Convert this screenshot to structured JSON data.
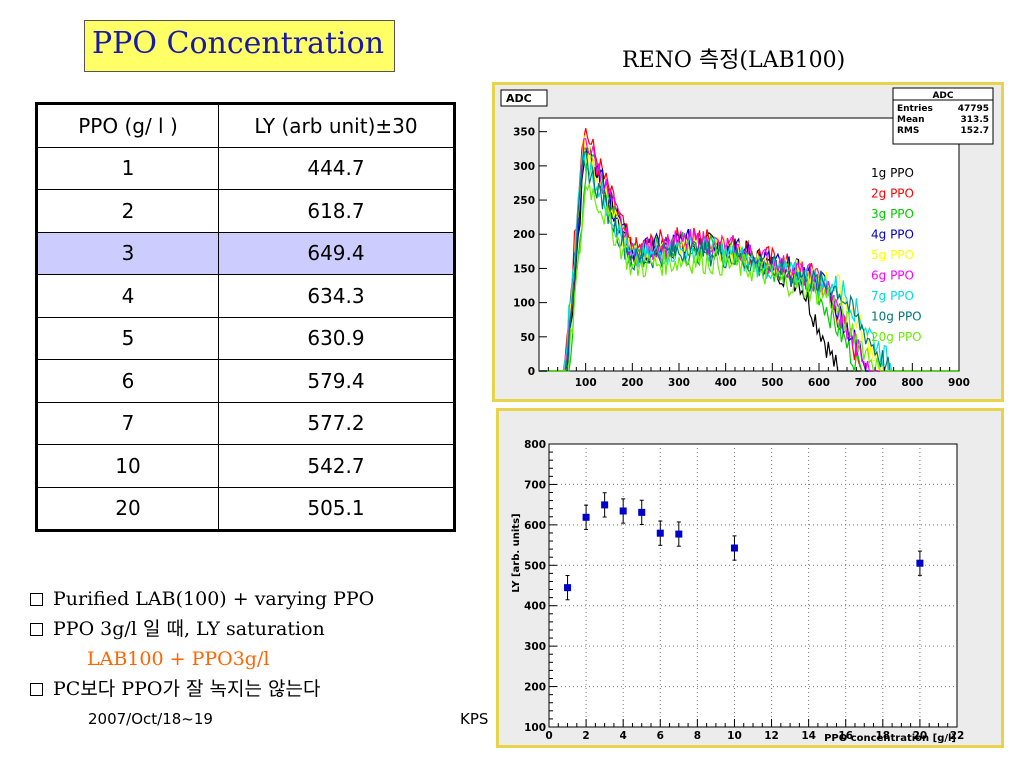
{
  "slide": {
    "title": "PPO Concentration",
    "right_title": "RENO 측정(LAB100)",
    "footer_date": "2007/Oct/18~19",
    "footer_org": "KPS"
  },
  "table": {
    "headers": [
      "PPO (g/ l )",
      "LY (arb unit)±30"
    ],
    "rows": [
      [
        "1",
        "444.7"
      ],
      [
        "2",
        "618.7"
      ],
      [
        "3",
        "649.4"
      ],
      [
        "4",
        "634.3"
      ],
      [
        "5",
        "630.9"
      ],
      [
        "6",
        "579.4"
      ],
      [
        "7",
        "577.2"
      ],
      [
        "10",
        "542.7"
      ],
      [
        "20",
        "505.1"
      ]
    ],
    "highlight_color": "#ccccff"
  },
  "bullets": [
    "Purified LAB(100) +  varying PPO",
    "PPO 3g/l 일 때, LY saturation",
    "LAB100 +  PPO3g/l",
    "PC보다 PPO가 잘 녹지는 않는다"
  ],
  "chart_data": [
    {
      "type": "line",
      "title": "ADC",
      "stats": {
        "title": "ADC",
        "Entries": "47795",
        "Mean": "313.5",
        "RMS": "152.7"
      },
      "xlim": [
        0,
        900
      ],
      "ylim": [
        0,
        370
      ],
      "xticks": [
        100,
        200,
        300,
        400,
        500,
        600,
        700,
        800,
        900
      ],
      "yticks": [
        0,
        50,
        100,
        150,
        200,
        250,
        300,
        350
      ],
      "series": [
        {
          "name": "1g   PPO",
          "color": "#000000"
        },
        {
          "name": "2g   PPO",
          "color": "#ff0000"
        },
        {
          "name": "3g   PPO",
          "color": "#00cc00"
        },
        {
          "name": "4g   PPO",
          "color": "#0000cc"
        },
        {
          "name": "5g   PPO",
          "color": "#ffff00"
        },
        {
          "name": "6g   PPO",
          "color": "#ff00ff"
        },
        {
          "name": "7g   PPO",
          "color": "#00dddd"
        },
        {
          "name": "10g PPO",
          "color": "#007777"
        },
        {
          "name": "20g PPO",
          "color": "#66ee00"
        }
      ]
    },
    {
      "type": "scatter",
      "xlabel": "PPO concentration [g/l]",
      "ylabel": "LY [arb. units]",
      "xlim": [
        0,
        22
      ],
      "ylim": [
        100,
        800
      ],
      "xticks": [
        0,
        2,
        4,
        6,
        8,
        10,
        12,
        14,
        16,
        18,
        20,
        22
      ],
      "yticks": [
        100,
        200,
        300,
        400,
        500,
        600,
        700,
        800
      ],
      "x": [
        1,
        2,
        3,
        4,
        5,
        6,
        7,
        10,
        20
      ],
      "y": [
        444.7,
        618.7,
        649.4,
        634.3,
        630.9,
        579.4,
        577.2,
        542.7,
        505.1
      ],
      "error": 30,
      "marker_color": "#0000cc"
    }
  ]
}
